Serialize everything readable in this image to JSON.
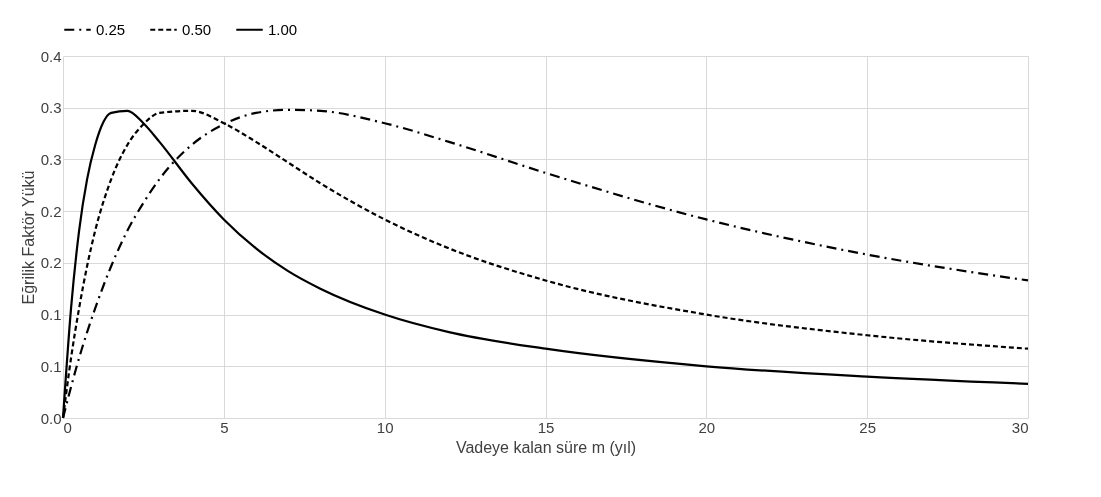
{
  "chart_data": {
    "type": "line",
    "xlabel": "Vadeye kalan süre m (yıl)",
    "ylabel": "Eğrilik Faktör Yükü",
    "x": [
      0,
      0.25,
      0.5,
      0.75,
      1,
      1.5,
      2,
      2.5,
      3,
      4,
      5,
      6,
      7,
      8,
      10,
      12,
      15,
      20,
      25,
      30
    ],
    "series": [
      {
        "name": "0.25",
        "color": "#000000",
        "line_style": "dashdot",
        "values": [
          0,
          0.03,
          0.058,
          0.083,
          0.106,
          0.147,
          0.181,
          0.208,
          0.231,
          0.264,
          0.284,
          0.295,
          0.298,
          0.297,
          0.285,
          0.267,
          0.237,
          0.192,
          0.158,
          0.133
        ]
      },
      {
        "name": "0.50",
        "color": "#000000",
        "line_style": "dashed",
        "values": [
          0,
          0.058,
          0.106,
          0.147,
          0.181,
          0.231,
          0.264,
          0.284,
          0.295,
          0.297,
          0.285,
          0.267,
          0.247,
          0.227,
          0.192,
          0.164,
          0.133,
          0.1,
          0.08,
          0.067
        ]
      },
      {
        "name": "1.00",
        "color": "#000000",
        "line_style": "solid",
        "values": [
          0,
          0.106,
          0.181,
          0.231,
          0.264,
          0.295,
          0.297,
          0.285,
          0.267,
          0.227,
          0.192,
          0.164,
          0.142,
          0.125,
          0.1,
          0.083,
          0.067,
          0.05,
          0.04,
          0.033
        ]
      }
    ],
    "xlim": [
      0,
      30
    ],
    "xticks": [
      0,
      5,
      10,
      15,
      20,
      25,
      30
    ],
    "ylim": [
      0,
      0.35
    ],
    "yticks": [
      {
        "value": 0,
        "label": "0.0"
      },
      {
        "value": 0.05,
        "label": "0.1"
      },
      {
        "value": 0.1,
        "label": "0.1"
      },
      {
        "value": 0.15,
        "label": "0.2"
      },
      {
        "value": 0.2,
        "label": "0.2"
      },
      {
        "value": 0.25,
        "label": "0.3"
      },
      {
        "value": 0.3,
        "label": "0.3"
      },
      {
        "value": 0.35,
        "label": "0.4"
      }
    ],
    "grid": true,
    "legend": "top",
    "marker": "none"
  }
}
